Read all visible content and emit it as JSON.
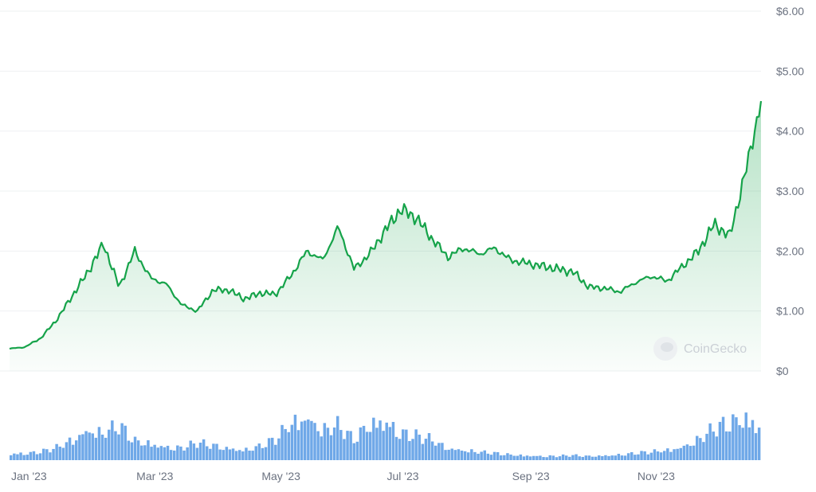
{
  "chart_data": {
    "type": "area",
    "title": "",
    "xlabel": "",
    "ylabel": "",
    "ylim": [
      0,
      6
    ],
    "y_ticks": [
      "$0",
      "$1.00",
      "$2.00",
      "$3.00",
      "$4.00",
      "$5.00",
      "$6.00"
    ],
    "x_ticks": [
      "Jan '23",
      "Mar '23",
      "May '23",
      "Jul '23",
      "Sep '23",
      "Nov '23"
    ],
    "grid": true,
    "line_color": "#16a34a",
    "volume_color": "#6fa8e8",
    "x_months": [
      0.0,
      0.25,
      0.5,
      0.75,
      1.0,
      1.25,
      1.5,
      1.75,
      2.0,
      2.25,
      2.5,
      2.75,
      3.0,
      3.25,
      3.5,
      3.75,
      4.0,
      4.25,
      4.5,
      4.75,
      5.0,
      5.25,
      5.5,
      5.75,
      6.0,
      6.25,
      6.5,
      6.75,
      7.0,
      7.25,
      7.5,
      7.75,
      8.0,
      8.25,
      8.5,
      8.75,
      9.0,
      9.25,
      9.5,
      9.75,
      10.0,
      10.25,
      10.5,
      10.75,
      11.0,
      11.25,
      11.5,
      11.75,
      12.0
    ],
    "price": [
      0.37,
      0.4,
      0.55,
      0.85,
      1.25,
      1.65,
      2.12,
      1.4,
      2.0,
      1.55,
      1.45,
      1.1,
      1.0,
      1.35,
      1.35,
      1.2,
      1.3,
      1.28,
      1.6,
      2.0,
      1.85,
      2.4,
      1.7,
      1.95,
      2.35,
      2.7,
      2.55,
      2.2,
      1.9,
      2.05,
      1.95,
      2.05,
      1.85,
      1.8,
      1.75,
      1.7,
      1.65,
      1.4,
      1.38,
      1.32,
      1.48,
      1.58,
      1.5,
      1.75,
      2.0,
      2.45,
      2.25,
      3.3,
      4.5
    ],
    "volume": [
      0.1,
      0.1,
      0.12,
      0.18,
      0.3,
      0.45,
      0.4,
      0.5,
      0.28,
      0.25,
      0.2,
      0.18,
      0.25,
      0.22,
      0.18,
      0.15,
      0.2,
      0.3,
      0.55,
      0.65,
      0.45,
      0.5,
      0.3,
      0.55,
      0.6,
      0.4,
      0.35,
      0.3,
      0.18,
      0.15,
      0.12,
      0.1,
      0.08,
      0.07,
      0.06,
      0.06,
      0.07,
      0.06,
      0.07,
      0.08,
      0.1,
      0.12,
      0.15,
      0.2,
      0.3,
      0.45,
      0.55,
      0.65,
      0.5
    ]
  },
  "watermark": {
    "text": "CoinGecko",
    "icon": "coingecko-logo-icon"
  },
  "colors": {
    "grid": "#eef0f2",
    "axis_text": "#6b7280",
    "area_top": "#16a34a",
    "background": "#ffffff"
  }
}
